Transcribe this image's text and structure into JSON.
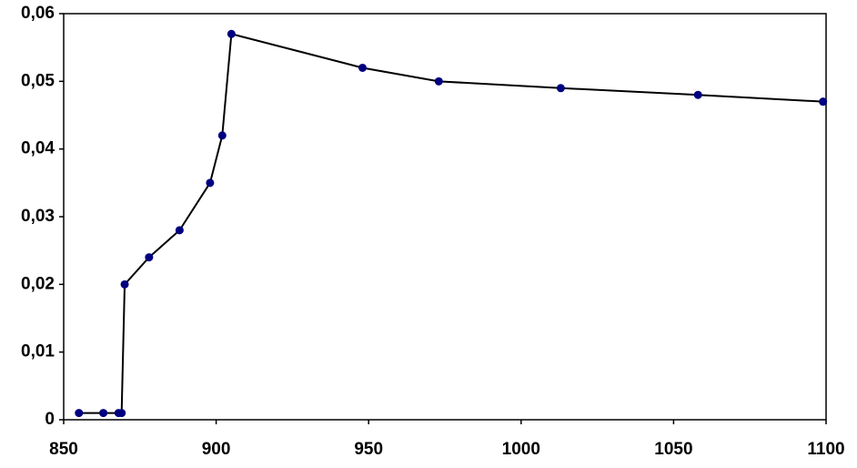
{
  "chart_data": {
    "type": "line",
    "x": [
      855,
      863,
      868,
      869,
      870,
      878,
      888,
      898,
      902,
      905,
      948,
      973,
      1013,
      1058,
      1099
    ],
    "values": [
      0.001,
      0.001,
      0.001,
      0.001,
      0.02,
      0.024,
      0.028,
      0.035,
      0.042,
      0.057,
      0.052,
      0.05,
      0.049,
      0.048,
      0.047
    ],
    "color": "#000080",
    "line_color": "#000000",
    "xlim": [
      850,
      1100
    ],
    "xticks": [
      850,
      900,
      950,
      1000,
      1050,
      1100
    ],
    "ylim": [
      0,
      0.06
    ],
    "yticks": [
      0,
      {
        "value": 0.01,
        "label": "0,01"
      },
      {
        "value": 0.02,
        "label": "0,02"
      },
      {
        "value": 0.03,
        "label": "0,03"
      },
      {
        "value": 0.04,
        "label": "0,04"
      },
      {
        "value": 0.05,
        "label": "0,05"
      },
      {
        "value": 0.06,
        "label": "0,06"
      }
    ],
    "grid": false
  }
}
